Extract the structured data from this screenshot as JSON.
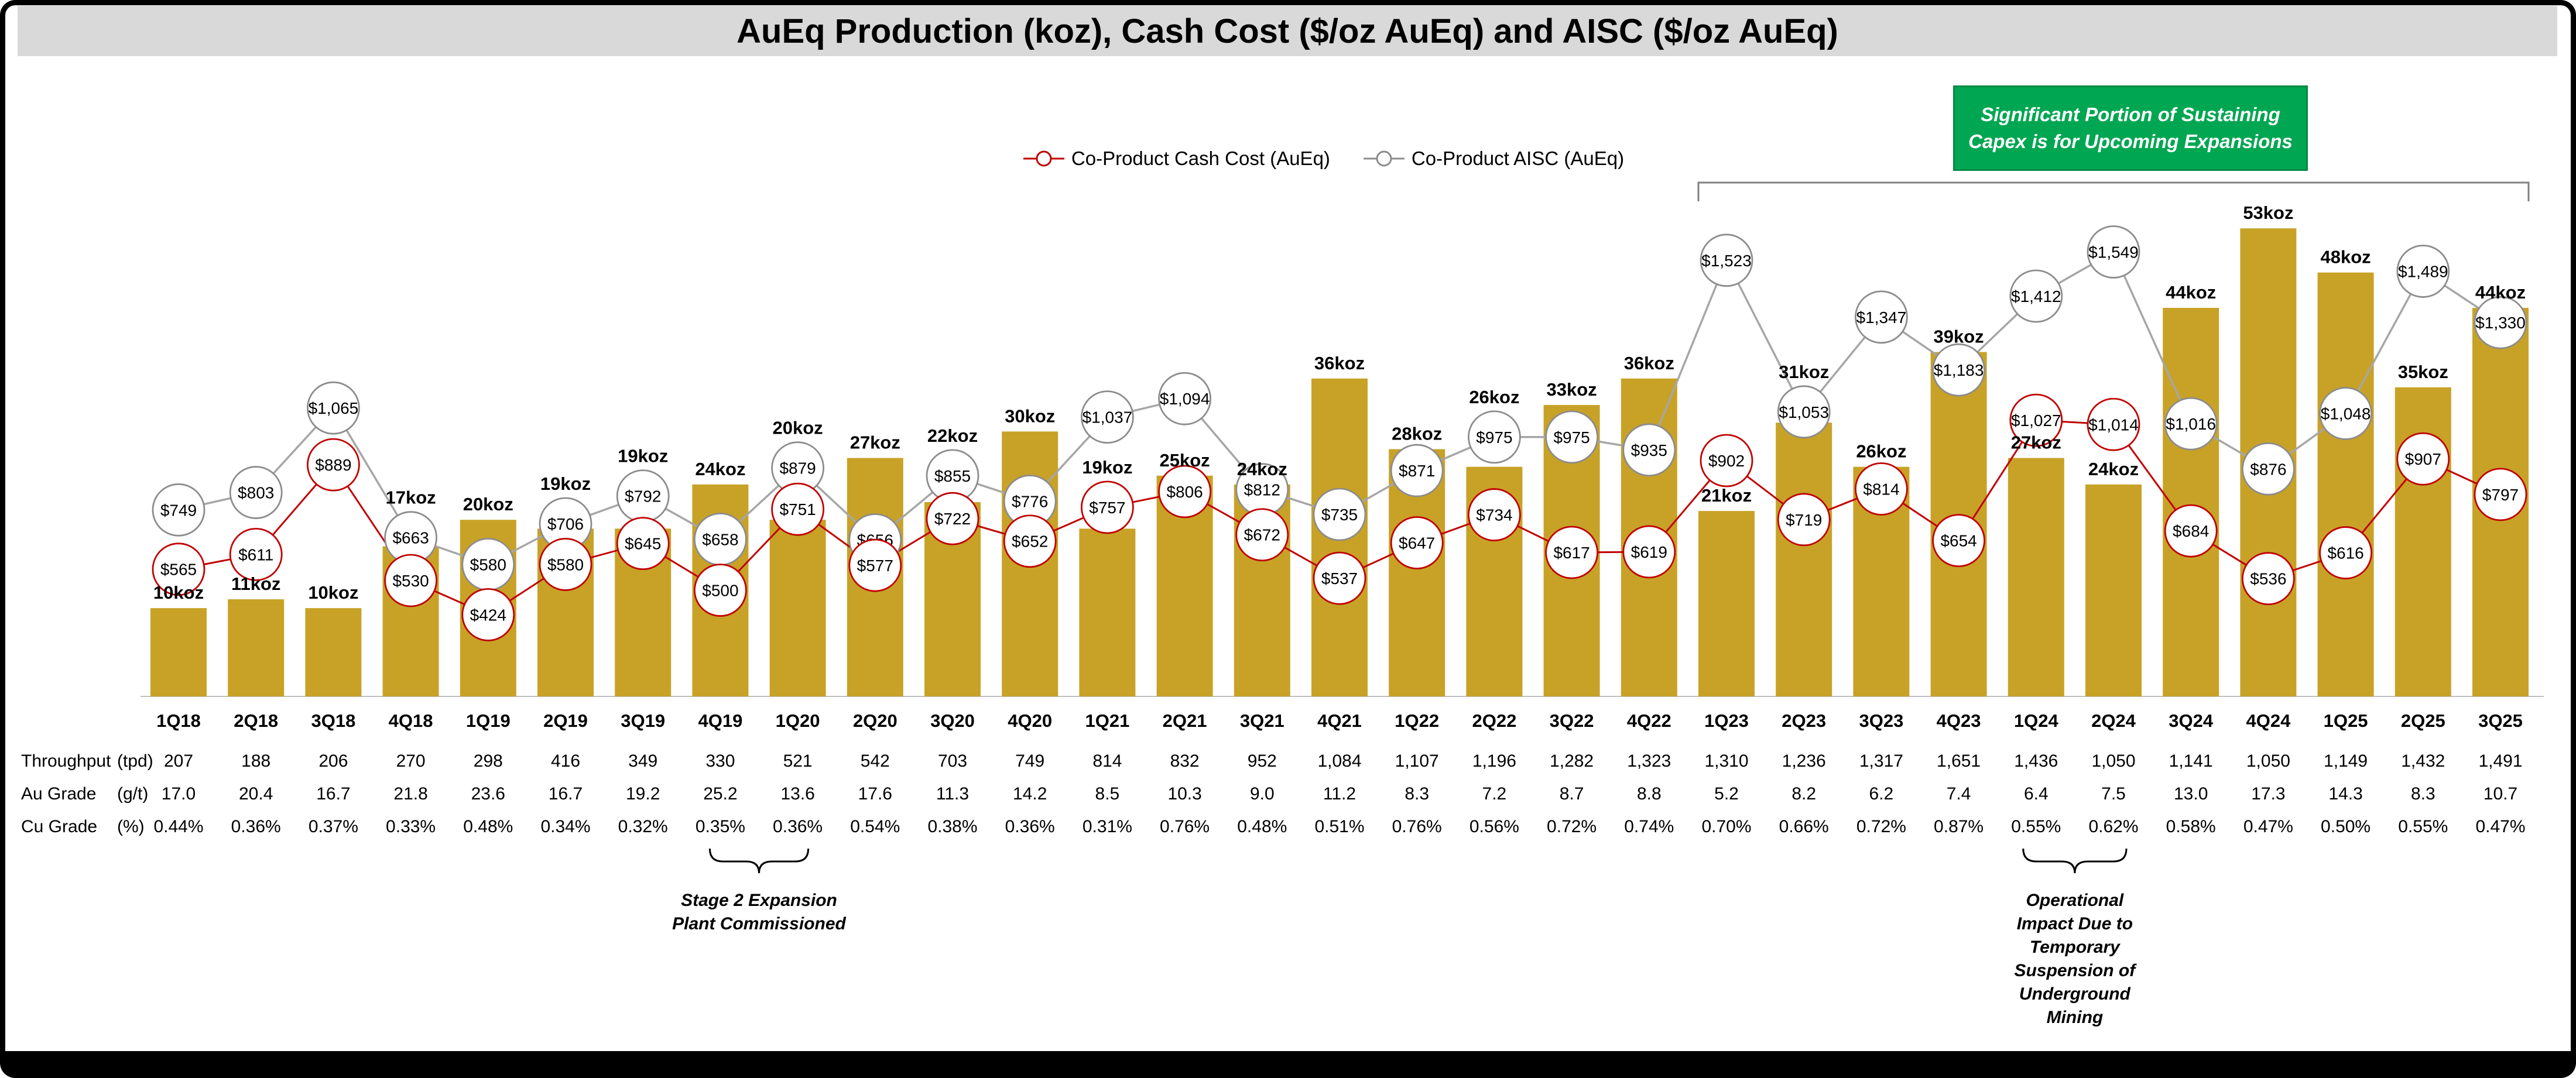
{
  "title": "AuEq Production (koz), Cash Cost ($/oz AuEq) and AISC ($/oz AuEq)",
  "legend": [
    {
      "label": "Co-Product Cash Cost (AuEq)",
      "color": "#C00000"
    },
    {
      "label": "Co-Product AISC (AuEq)",
      "color": "#8C8C8C"
    }
  ],
  "annotations": {
    "capex_line1": "Significant Portion of Sustaining",
    "capex_line2": "Capex is for Upcoming Expansions",
    "stage2_lines": [
      "Stage 2 Expansion",
      "Plant Commissioned"
    ],
    "operational_lines": [
      "Operational",
      "Impact Due to",
      "Temporary",
      "Suspension of",
      "Underground",
      "Mining"
    ]
  },
  "chart_data": {
    "type": "bar+line",
    "title": "AuEq Production (koz), Cash Cost ($/oz AuEq) and AISC ($/oz AuEq)",
    "grid": false,
    "legend_position": "top",
    "categories": [
      "1Q18",
      "2Q18",
      "3Q18",
      "4Q18",
      "1Q19",
      "2Q19",
      "3Q19",
      "4Q19",
      "1Q20",
      "2Q20",
      "3Q20",
      "4Q20",
      "1Q21",
      "2Q21",
      "3Q21",
      "4Q21",
      "1Q22",
      "2Q22",
      "3Q22",
      "4Q22",
      "1Q23",
      "2Q23",
      "3Q23",
      "4Q23",
      "1Q24",
      "2Q24",
      "3Q24",
      "4Q24",
      "1Q25",
      "2Q25",
      "3Q25"
    ],
    "series": [
      {
        "name": "AuEq Production",
        "type": "bar",
        "unit": "koz",
        "color": "#C8A227",
        "values": [
          10,
          11,
          10,
          17,
          20,
          19,
          19,
          24,
          20,
          27,
          22,
          30,
          19,
          25,
          24,
          36,
          28,
          26,
          33,
          36,
          21,
          31,
          26,
          39,
          27,
          24,
          44,
          53,
          48,
          35,
          44
        ]
      },
      {
        "name": "Co-Product Cash Cost (AuEq)",
        "type": "line",
        "unit": "$/oz",
        "color": "#C00000",
        "line_color": "#C00000",
        "values": [
          565,
          611,
          889,
          530,
          424,
          580,
          645,
          500,
          751,
          577,
          722,
          652,
          757,
          806,
          672,
          537,
          647,
          734,
          617,
          619,
          902,
          719,
          814,
          654,
          1027,
          1014,
          684,
          536,
          616,
          907,
          797
        ]
      },
      {
        "name": "Co-Product AISC (AuEq)",
        "type": "line",
        "unit": "$/oz",
        "color": "#8C8C8C",
        "line_color": "#A6A6A6",
        "values": [
          749,
          803,
          1065,
          663,
          580,
          706,
          792,
          658,
          879,
          656,
          855,
          776,
          1037,
          1094,
          812,
          735,
          871,
          975,
          975,
          935,
          1523,
          1053,
          1347,
          1183,
          1412,
          1549,
          1016,
          876,
          1048,
          1489,
          1330
        ]
      }
    ],
    "table": {
      "rows": [
        {
          "label": "Throughput",
          "unit": "(tpd)",
          "values": [
            "207",
            "188",
            "206",
            "270",
            "298",
            "416",
            "349",
            "330",
            "521",
            "542",
            "703",
            "749",
            "814",
            "832",
            "952",
            "1,084",
            "1,107",
            "1,196",
            "1,282",
            "1,323",
            "1,310",
            "1,236",
            "1,317",
            "1,651",
            "1,436",
            "1,050",
            "1,141",
            "1,050",
            "1,149",
            "1,432",
            "1,491"
          ]
        },
        {
          "label": "Au Grade",
          "unit": "(g/t)",
          "values": [
            "17.0",
            "20.4",
            "16.7",
            "21.8",
            "23.6",
            "16.7",
            "19.2",
            "25.2",
            "13.6",
            "17.6",
            "11.3",
            "14.2",
            "8.5",
            "10.3",
            "9.0",
            "11.2",
            "8.3",
            "7.2",
            "8.7",
            "8.8",
            "5.2",
            "8.2",
            "6.2",
            "7.4",
            "6.4",
            "7.5",
            "13.0",
            "17.3",
            "14.3",
            "8.3",
            "10.7"
          ]
        },
        {
          "label": "Cu Grade",
          "unit": "(%)",
          "values": [
            "0.44%",
            "0.36%",
            "0.37%",
            "0.33%",
            "0.48%",
            "0.34%",
            "0.32%",
            "0.35%",
            "0.36%",
            "0.54%",
            "0.38%",
            "0.36%",
            "0.31%",
            "0.76%",
            "0.48%",
            "0.51%",
            "0.76%",
            "0.56%",
            "0.72%",
            "0.74%",
            "0.70%",
            "0.66%",
            "0.72%",
            "0.87%",
            "0.55%",
            "0.62%",
            "0.58%",
            "0.47%",
            "0.50%",
            "0.55%",
            "0.47%"
          ]
        }
      ]
    },
    "bracket_span": {
      "from": "1Q23",
      "to": "3Q25"
    },
    "stage2_span": {
      "from": "4Q19",
      "to": "1Q20"
    },
    "operational_span": {
      "from": "1Q24",
      "to": "2Q24"
    }
  }
}
